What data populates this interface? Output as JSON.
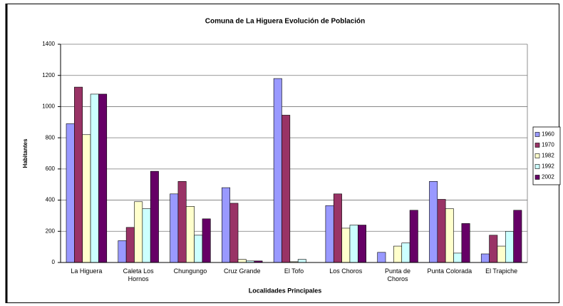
{
  "chart_data": {
    "type": "bar",
    "title": "Comuna de La Higuera Evolución de Población",
    "x_label": "Localidades Principales",
    "y_label": "Habitantes",
    "categories": [
      "La Higuera",
      "Caleta Los Hornos",
      "Chungungo",
      "Cruz Grande",
      "El Tofo",
      "Los Choros",
      "Punta de Choros",
      "Punta Colorada",
      "El Trapiche"
    ],
    "series": [
      {
        "name": "1960",
        "color": "#9999ff",
        "values": [
          890,
          140,
          440,
          480,
          1180,
          365,
          65,
          520,
          55
        ]
      },
      {
        "name": "1970",
        "color": "#993366",
        "values": [
          1125,
          225,
          520,
          380,
          945,
          440,
          0,
          405,
          175
        ]
      },
      {
        "name": "1982",
        "color": "#ffffcc",
        "values": [
          820,
          390,
          360,
          20,
          5,
          220,
          105,
          345,
          105
        ]
      },
      {
        "name": "1992",
        "color": "#ccffff",
        "values": [
          1080,
          345,
          175,
          10,
          20,
          240,
          125,
          60,
          200
        ]
      },
      {
        "name": "2002",
        "color": "#660066",
        "values": [
          1080,
          585,
          280,
          10,
          0,
          240,
          335,
          250,
          335
        ]
      }
    ],
    "ylim": [
      0,
      1400
    ],
    "yticks": [
      0,
      200,
      400,
      600,
      800,
      1000,
      1200,
      1400
    ],
    "grid": true,
    "legend": "right"
  }
}
